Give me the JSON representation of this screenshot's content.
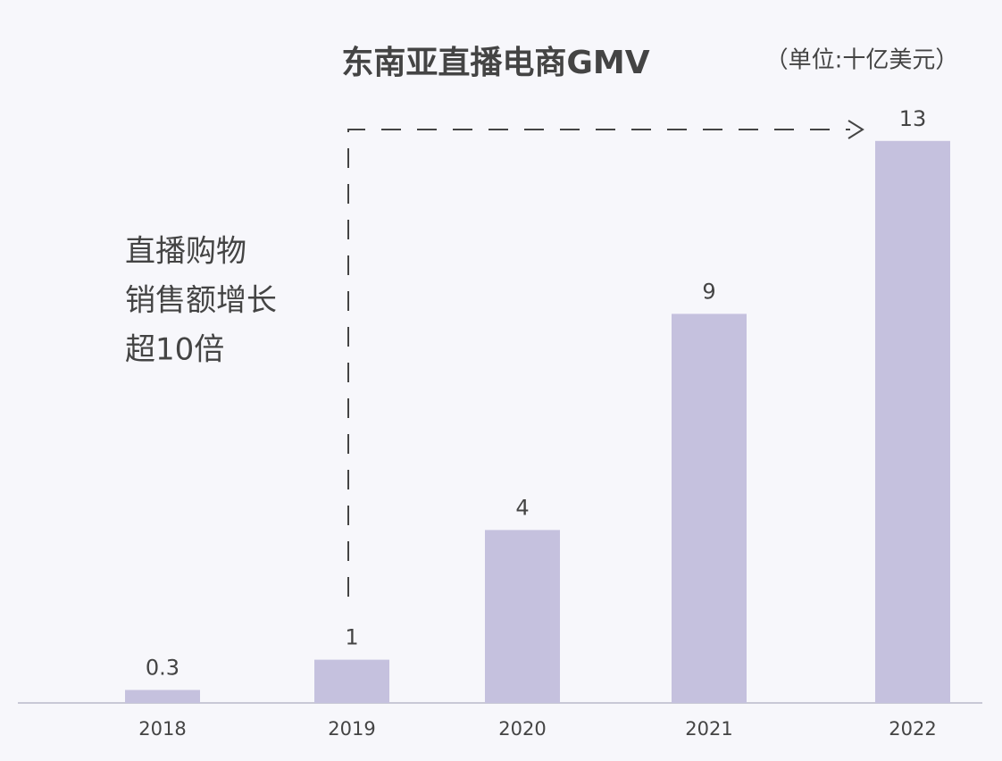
{
  "chart_data": {
    "type": "bar",
    "title": "东南亚直播电商GMV",
    "subtitle": "（单位:十亿美元）",
    "annotation": [
      "直播购物",
      "销售额增长",
      "超10倍"
    ],
    "categories": [
      "2018",
      "2019",
      "2020",
      "2021",
      "2022"
    ],
    "values": [
      0.3,
      1,
      4,
      9,
      13
    ],
    "color": "#c5c1de"
  }
}
